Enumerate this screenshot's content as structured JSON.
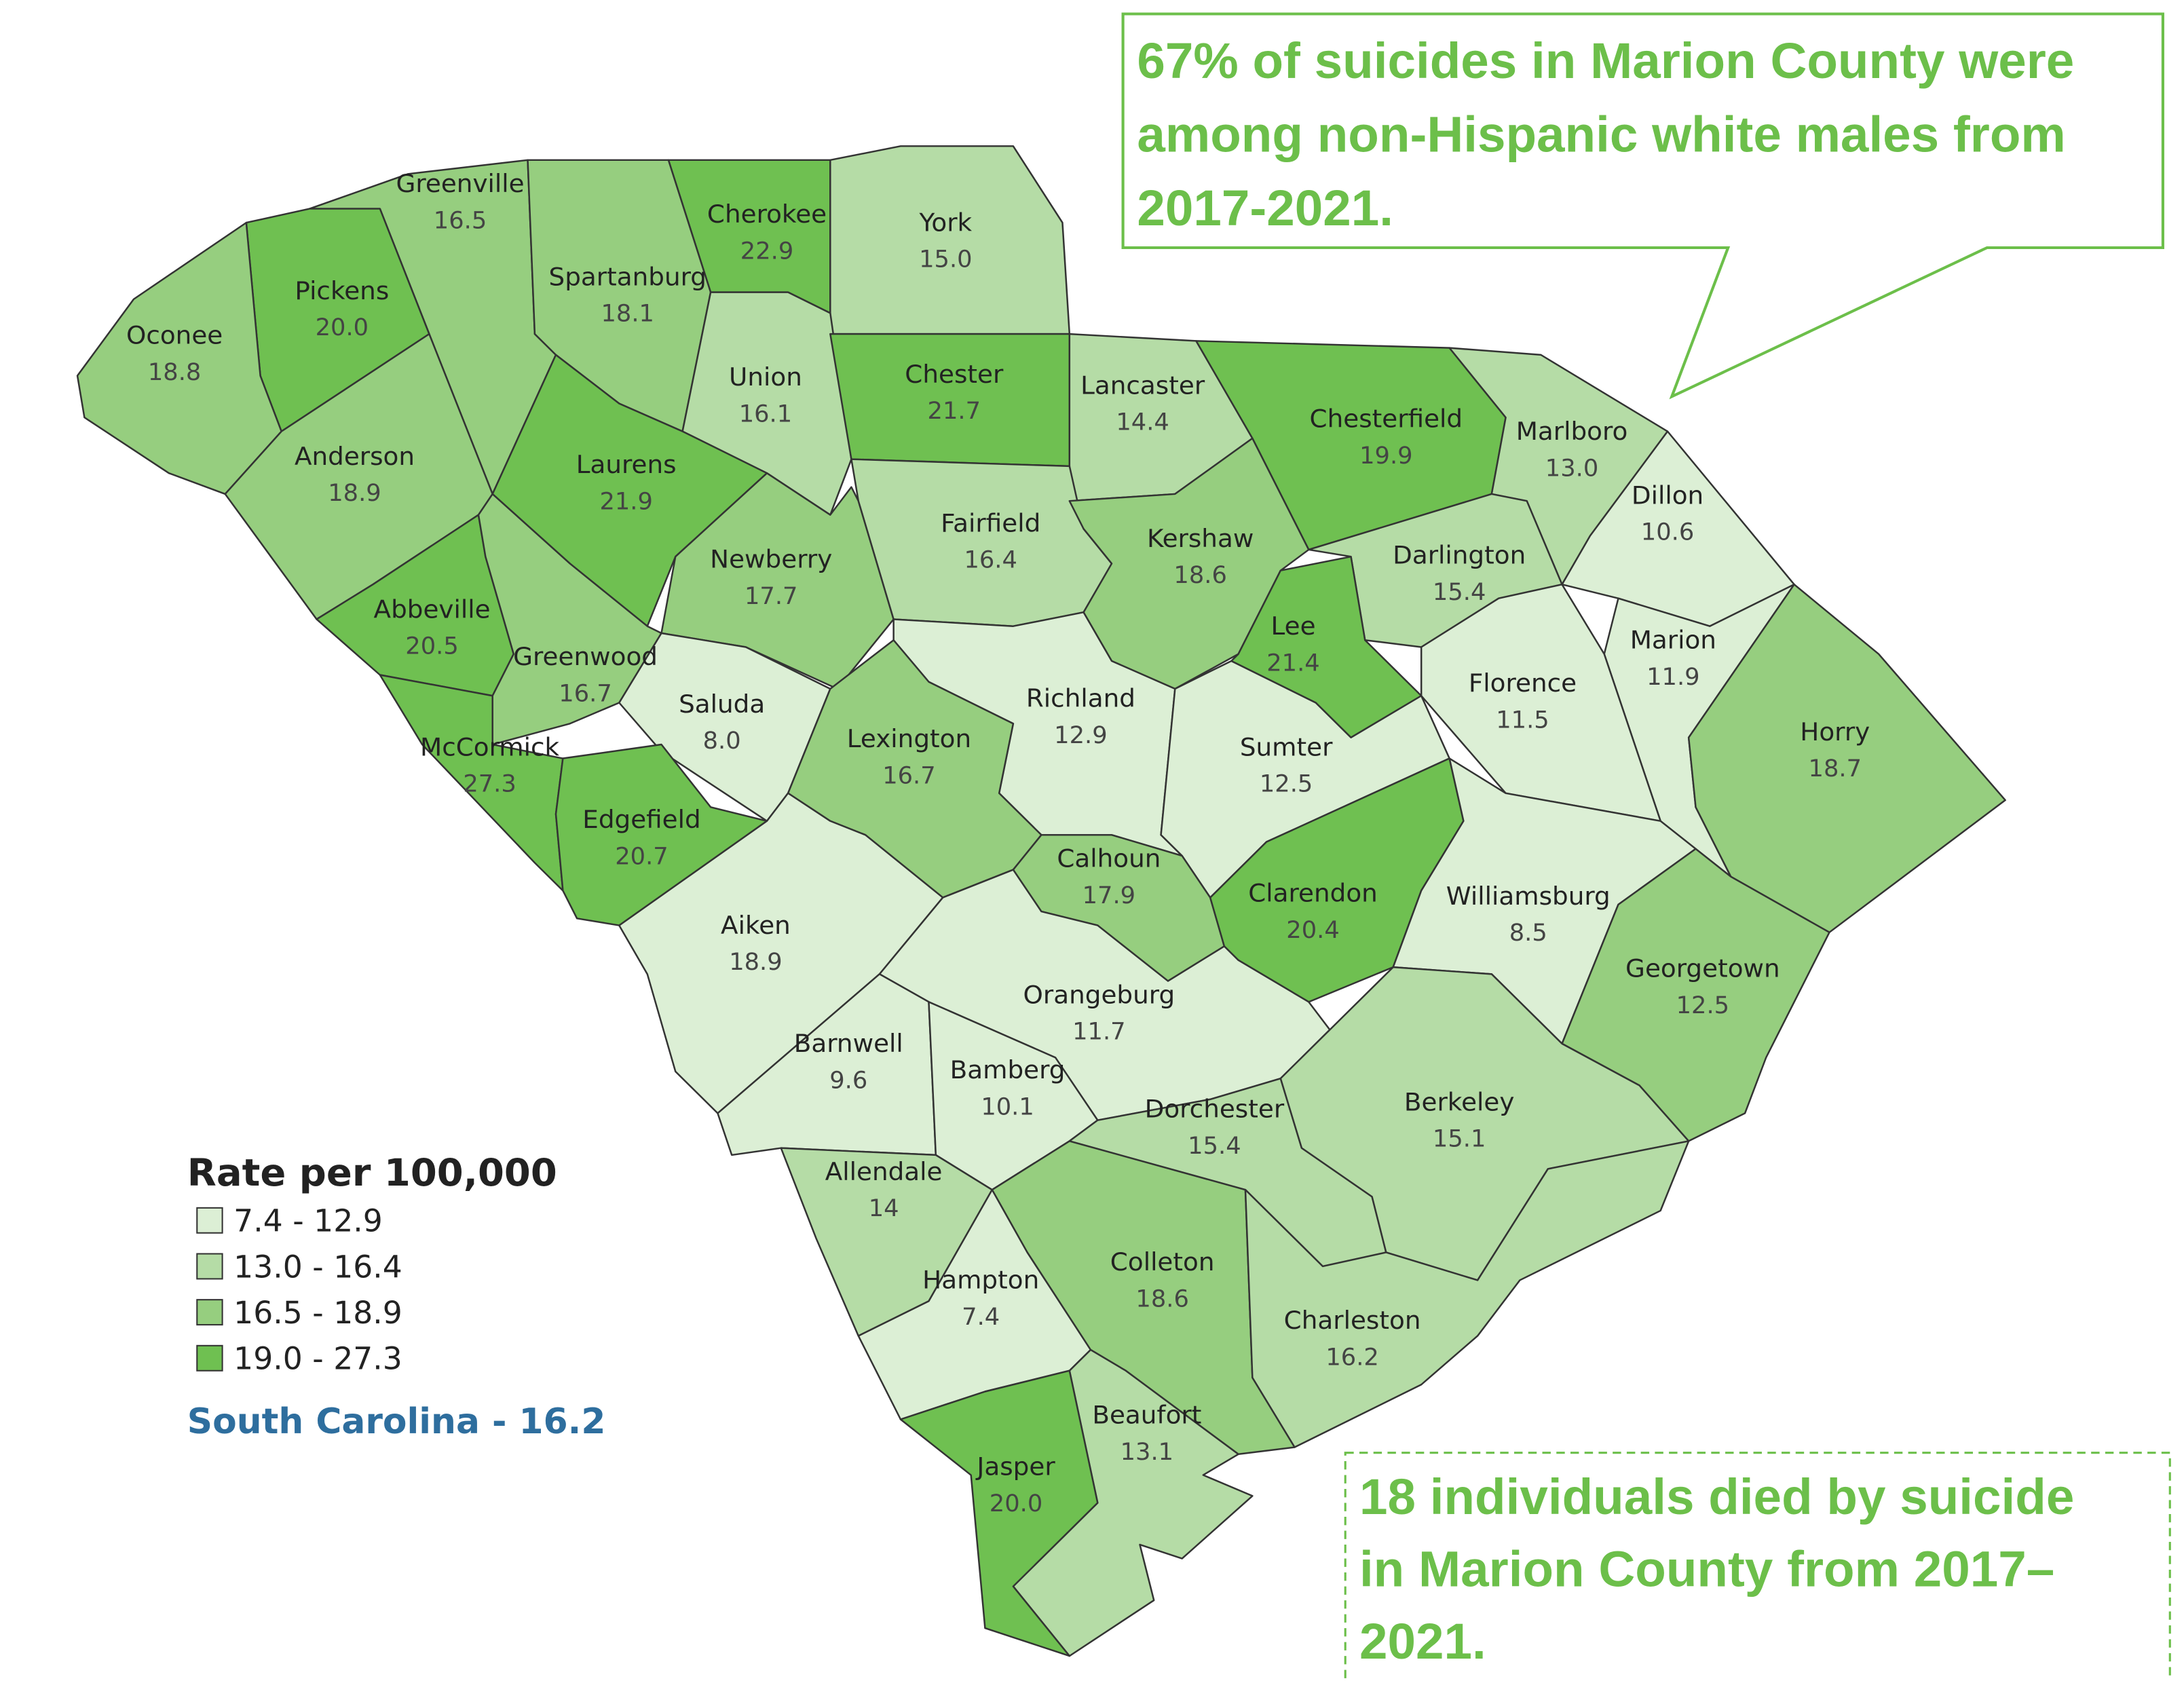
{
  "map": {
    "callout_top": [
      "67% of suicides in Marion County were",
      "among non-Hispanic white males from",
      "2017-2021."
    ],
    "callout_bottom": [
      "18 individuals died by suicide",
      "in Marion County from 2017–",
      "2021."
    ],
    "legend": {
      "title": "Rate per 100,000",
      "bins": [
        {
          "label": "7.4 - 12.9",
          "min": 7.4,
          "max": 12.9,
          "color": "#dcefd5"
        },
        {
          "label": "13.0 - 16.4",
          "min": 13.0,
          "max": 16.4,
          "color": "#b5dca6"
        },
        {
          "label": "16.5 - 18.9",
          "min": 16.5,
          "max": 18.9,
          "color": "#96ce7f"
        },
        {
          "label": "19.0 - 27.3",
          "min": 19.0,
          "max": 27.3,
          "color": "#6fc051"
        }
      ]
    },
    "state_rate": "South Carolina - 16.2",
    "counties": [
      {
        "name": "Greenville",
        "value": 16.5
      },
      {
        "name": "Cherokee",
        "value": 22.9
      },
      {
        "name": "York",
        "value": 15,
        "value_label": "15.0"
      },
      {
        "name": "Pickens",
        "value": 20,
        "value_label": "20.0"
      },
      {
        "name": "Oconee",
        "value": 18.8
      },
      {
        "name": "Spartanburg",
        "value": 18.1
      },
      {
        "name": "Union",
        "value": 16.1
      },
      {
        "name": "Chester",
        "value": 21.7
      },
      {
        "name": "Lancaster",
        "value": 14.4
      },
      {
        "name": "Chesterfield",
        "value": 19.9
      },
      {
        "name": "Marlboro",
        "value": 13,
        "value_label": "13.0"
      },
      {
        "name": "Anderson",
        "value": 18.9
      },
      {
        "name": "Laurens",
        "value": 21.9
      },
      {
        "name": "Dillon",
        "value": 10.6
      },
      {
        "name": "Newberry",
        "value": 17.7
      },
      {
        "name": "Fairfield",
        "value": 16.4
      },
      {
        "name": "Kershaw",
        "value": 18.6
      },
      {
        "name": "Darlington",
        "value": 15.4
      },
      {
        "name": "Abbeville",
        "value": 20.5
      },
      {
        "name": "Greenwood",
        "value": 16.7
      },
      {
        "name": "Lee",
        "value": 21.4
      },
      {
        "name": "Marion",
        "value": 11.9
      },
      {
        "name": "Saluda",
        "value": 8,
        "value_label": "8.0"
      },
      {
        "name": "Richland",
        "value": 12.9
      },
      {
        "name": "Florence",
        "value": 11.5
      },
      {
        "name": "Sumter",
        "value": 12.5
      },
      {
        "name": "McCormick",
        "value": 27.3
      },
      {
        "name": "Lexington",
        "value": 16.7
      },
      {
        "name": "Horry",
        "value": 18.7
      },
      {
        "name": "Edgefield",
        "value": 20.7
      },
      {
        "name": "Calhoun",
        "value": 17.9
      },
      {
        "name": "Clarendon",
        "value": 20.4
      },
      {
        "name": "Williamsburg",
        "value": 8.5
      },
      {
        "name": "Aiken",
        "value": 18.9
      },
      {
        "name": "Orangeburg",
        "value": 11.7
      },
      {
        "name": "Georgetown",
        "value": 12.5
      },
      {
        "name": "Barnwell",
        "value": 9.6
      },
      {
        "name": "Bamberg",
        "value": 10.1
      },
      {
        "name": "Dorchester",
        "value": 15.4
      },
      {
        "name": "Berkeley",
        "value": 15.1
      },
      {
        "name": "Allendale",
        "value": 14
      },
      {
        "name": "Colleton",
        "value": 18.6
      },
      {
        "name": "Hampton",
        "value": 7.4
      },
      {
        "name": "Charleston",
        "value": 16.2
      },
      {
        "name": "Beaufort",
        "value": 13.1
      },
      {
        "name": "Jasper",
        "value": 20,
        "value_label": "20.0"
      }
    ]
  }
}
